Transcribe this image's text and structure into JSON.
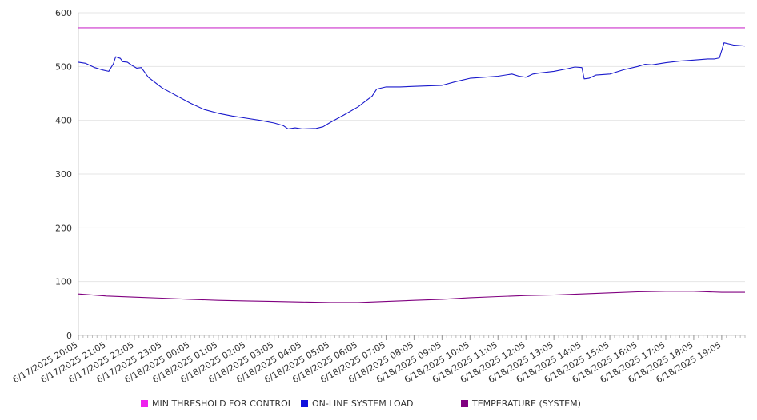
{
  "chart_data": {
    "type": "line",
    "title": "",
    "xlabel": "",
    "ylabel": "",
    "ylim": [
      0,
      600
    ],
    "yticks": [
      0,
      100,
      200,
      300,
      400,
      500,
      600
    ],
    "grid": true,
    "legend_position": "bottom",
    "x_range": [
      "6/17/2025 20:05",
      "6/18/2025 19:55"
    ],
    "x_tick_labels": [
      "6/17/2025 20:05",
      "6/17/2025 21:05",
      "6/17/2025 22:05",
      "6/17/2025 23:05",
      "6/18/2025 00:05",
      "6/18/2025 01:05",
      "6/18/2025 02:05",
      "6/18/2025 03:05",
      "6/18/2025 04:05",
      "6/18/2025 05:05",
      "6/18/2025 06:05",
      "6/18/2025 07:05",
      "6/18/2025 08:05",
      "6/18/2025 09:05",
      "6/18/2025 10:05",
      "6/18/2025 11:05",
      "6/18/2025 12:05",
      "6/18/2025 13:05",
      "6/18/2025 14:05",
      "6/18/2025 15:05",
      "6/18/2025 16:05",
      "6/18/2025 17:05",
      "6/18/2025 18:05",
      "6/18/2025 19:05"
    ],
    "series": [
      {
        "name": "MIN THRESHOLD FOR CONTROL",
        "color": "#cc33cc",
        "legend_color": "#ee22ee",
        "points": [
          [
            "6/17/2025 20:05",
            572
          ],
          [
            "6/18/2025 19:55",
            572
          ]
        ]
      },
      {
        "name": "ON-LINE SYSTEM LOAD",
        "color": "#1a1acc",
        "legend_color": "#1010dd",
        "points": [
          [
            "6/17/2025 20:05",
            508
          ],
          [
            "6/17/2025 20:20",
            506
          ],
          [
            "6/17/2025 20:40",
            498
          ],
          [
            "6/17/2025 20:55",
            494
          ],
          [
            "6/17/2025 21:10",
            491
          ],
          [
            "6/17/2025 21:20",
            505
          ],
          [
            "6/17/2025 21:25",
            518
          ],
          [
            "6/17/2025 21:35",
            515
          ],
          [
            "6/17/2025 21:40",
            509
          ],
          [
            "6/17/2025 21:50",
            508
          ],
          [
            "6/17/2025 22:00",
            502
          ],
          [
            "6/17/2025 22:10",
            497
          ],
          [
            "6/17/2025 22:20",
            498
          ],
          [
            "6/17/2025 22:35",
            480
          ],
          [
            "6/17/2025 23:05",
            460
          ],
          [
            "6/18/2025 00:05",
            432
          ],
          [
            "6/18/2025 00:35",
            420
          ],
          [
            "6/18/2025 01:05",
            413
          ],
          [
            "6/18/2025 01:35",
            408
          ],
          [
            "6/18/2025 02:05",
            404
          ],
          [
            "6/18/2025 02:35",
            400
          ],
          [
            "6/18/2025 03:05",
            395
          ],
          [
            "6/18/2025 03:25",
            390
          ],
          [
            "6/18/2025 03:35",
            384
          ],
          [
            "6/18/2025 03:50",
            386
          ],
          [
            "6/18/2025 04:05",
            384
          ],
          [
            "6/18/2025 04:35",
            385
          ],
          [
            "6/18/2025 04:50",
            388
          ],
          [
            "6/18/2025 05:05",
            396
          ],
          [
            "6/18/2025 05:35",
            410
          ],
          [
            "6/18/2025 06:05",
            425
          ],
          [
            "6/18/2025 06:20",
            435
          ],
          [
            "6/18/2025 06:35",
            445
          ],
          [
            "6/18/2025 06:45",
            458
          ],
          [
            "6/18/2025 07:05",
            462
          ],
          [
            "6/18/2025 07:35",
            462
          ],
          [
            "6/18/2025 08:05",
            463
          ],
          [
            "6/18/2025 08:35",
            464
          ],
          [
            "6/18/2025 09:05",
            465
          ],
          [
            "6/18/2025 09:35",
            472
          ],
          [
            "6/18/2025 10:05",
            478
          ],
          [
            "6/18/2025 10:35",
            480
          ],
          [
            "6/18/2025 11:05",
            482
          ],
          [
            "6/18/2025 11:35",
            486
          ],
          [
            "6/18/2025 11:50",
            482
          ],
          [
            "6/18/2025 12:05",
            480
          ],
          [
            "6/18/2025 12:20",
            486
          ],
          [
            "6/18/2025 12:35",
            488
          ],
          [
            "6/18/2025 13:05",
            491
          ],
          [
            "6/18/2025 13:35",
            496
          ],
          [
            "6/18/2025 13:50",
            499
          ],
          [
            "6/18/2025 14:05",
            498
          ],
          [
            "6/18/2025 14:10",
            477
          ],
          [
            "6/18/2025 14:20",
            478
          ],
          [
            "6/18/2025 14:35",
            484
          ],
          [
            "6/18/2025 15:05",
            486
          ],
          [
            "6/18/2025 15:35",
            494
          ],
          [
            "6/18/2025 16:05",
            500
          ],
          [
            "6/18/2025 16:20",
            504
          ],
          [
            "6/18/2025 16:35",
            503
          ],
          [
            "6/18/2025 17:05",
            507
          ],
          [
            "6/18/2025 17:35",
            510
          ],
          [
            "6/18/2025 18:05",
            512
          ],
          [
            "6/18/2025 18:35",
            514
          ],
          [
            "6/18/2025 18:50",
            514
          ],
          [
            "6/18/2025 19:00",
            516
          ],
          [
            "6/18/2025 19:10",
            544
          ],
          [
            "6/18/2025 19:30",
            540
          ],
          [
            "6/18/2025 19:55",
            538
          ]
        ]
      },
      {
        "name": "TEMPERATURE (SYSTEM)",
        "color": "#800080",
        "legend_color": "#800080",
        "points": [
          [
            "6/17/2025 20:05",
            77
          ],
          [
            "6/17/2025 21:05",
            73
          ],
          [
            "6/17/2025 22:05",
            71
          ],
          [
            "6/17/2025 23:05",
            69
          ],
          [
            "6/18/2025 00:05",
            67
          ],
          [
            "6/18/2025 01:05",
            65
          ],
          [
            "6/18/2025 02:05",
            64
          ],
          [
            "6/18/2025 03:05",
            63
          ],
          [
            "6/18/2025 04:05",
            62
          ],
          [
            "6/18/2025 05:05",
            61
          ],
          [
            "6/18/2025 06:05",
            61
          ],
          [
            "6/18/2025 07:05",
            63
          ],
          [
            "6/18/2025 08:05",
            65
          ],
          [
            "6/18/2025 09:05",
            67
          ],
          [
            "6/18/2025 10:05",
            70
          ],
          [
            "6/18/2025 11:05",
            72
          ],
          [
            "6/18/2025 12:05",
            74
          ],
          [
            "6/18/2025 13:05",
            75
          ],
          [
            "6/18/2025 14:05",
            77
          ],
          [
            "6/18/2025 15:05",
            79
          ],
          [
            "6/18/2025 16:05",
            81
          ],
          [
            "6/18/2025 17:05",
            82
          ],
          [
            "6/18/2025 18:05",
            82
          ],
          [
            "6/18/2025 19:05",
            80
          ],
          [
            "6/18/2025 19:55",
            80
          ]
        ]
      }
    ]
  }
}
